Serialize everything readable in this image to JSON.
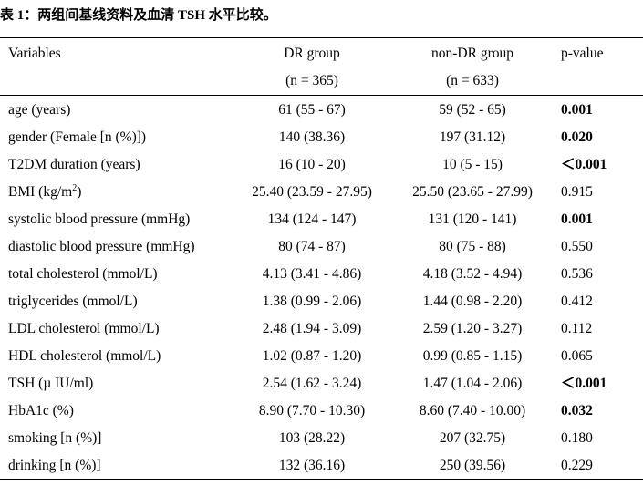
{
  "caption": {
    "label": "表 1：",
    "title": "两组间基线资料及血清 TSH 水平比较。"
  },
  "table": {
    "headers": {
      "variables": "Variables",
      "dr_group": "DR group",
      "dr_group_n": "(n = 365)",
      "non_dr_group": "non-DR group",
      "non_dr_group_n": "(n = 633)",
      "p_value": "p-value"
    },
    "rows": [
      {
        "variable": "age (years)",
        "dr": "61 (55 - 67)",
        "non_dr": "59 (52 - 65)",
        "p": "0.001",
        "p_bold": true
      },
      {
        "variable": "gender (Female [n (%)])",
        "dr": "140 (38.36)",
        "non_dr": "197 (31.12)",
        "p": "0.020",
        "p_bold": true
      },
      {
        "variable": "T2DM duration (years)",
        "dr": "16 (10 - 20)",
        "non_dr": "10 (5 - 15)",
        "p": "＜0.001",
        "p_bold": true
      },
      {
        "variable": "BMI (kg/m",
        "variable_sup": "2",
        "variable_tail": ")",
        "dr": "25.40 (23.59 - 27.95)",
        "non_dr": "25.50 (23.65 - 27.99)",
        "p": "0.915",
        "p_bold": false
      },
      {
        "variable": "systolic blood pressure (mmHg)",
        "dr": "134 (124 - 147)",
        "non_dr": "131 (120 - 141)",
        "p": "0.001",
        "p_bold": true
      },
      {
        "variable": "diastolic blood pressure (mmHg)",
        "dr": "80 (74 - 87)",
        "non_dr": "80 (75 - 88)",
        "p": "0.550",
        "p_bold": false
      },
      {
        "variable": "total cholesterol (mmol/L)",
        "dr": "4.13 (3.41 - 4.86)",
        "non_dr": "4.18 (3.52 - 4.94)",
        "p": "0.536",
        "p_bold": false
      },
      {
        "variable": "triglycerides (mmol/L)",
        "dr": "1.38 (0.99 - 2.06)",
        "non_dr": "1.44 (0.98 - 2.20)",
        "p": "0.412",
        "p_bold": false
      },
      {
        "variable": "LDL cholesterol (mmol/L)",
        "dr": "2.48 (1.94 - 3.09)",
        "non_dr": "2.59 (1.20 - 3.27)",
        "p": "0.112",
        "p_bold": false
      },
      {
        "variable": "HDL cholesterol (mmol/L)",
        "dr": "1.02 (0.87 - 1.20)",
        "non_dr": "0.99 (0.85 - 1.15)",
        "p": "0.065",
        "p_bold": false
      },
      {
        "variable": "TSH (µ IU/ml)",
        "dr": "2.54 (1.62 - 3.24)",
        "non_dr": "1.47 (1.04 - 2.06)",
        "p": "＜0.001",
        "p_bold": true
      },
      {
        "variable": "HbA1c (%)",
        "dr": "8.90 (7.70 - 10.30)",
        "non_dr": "8.60 (7.40 - 10.00)",
        "p": "0.032",
        "p_bold": true
      },
      {
        "variable": "smoking [n (%)]",
        "dr": "103 (28.22)",
        "non_dr": "207 (32.75)",
        "p": "0.180",
        "p_bold": false
      },
      {
        "variable": "drinking [n (%)]",
        "dr": "132 (36.16)",
        "non_dr": "250 (39.56)",
        "p": "0.229",
        "p_bold": false
      }
    ]
  }
}
